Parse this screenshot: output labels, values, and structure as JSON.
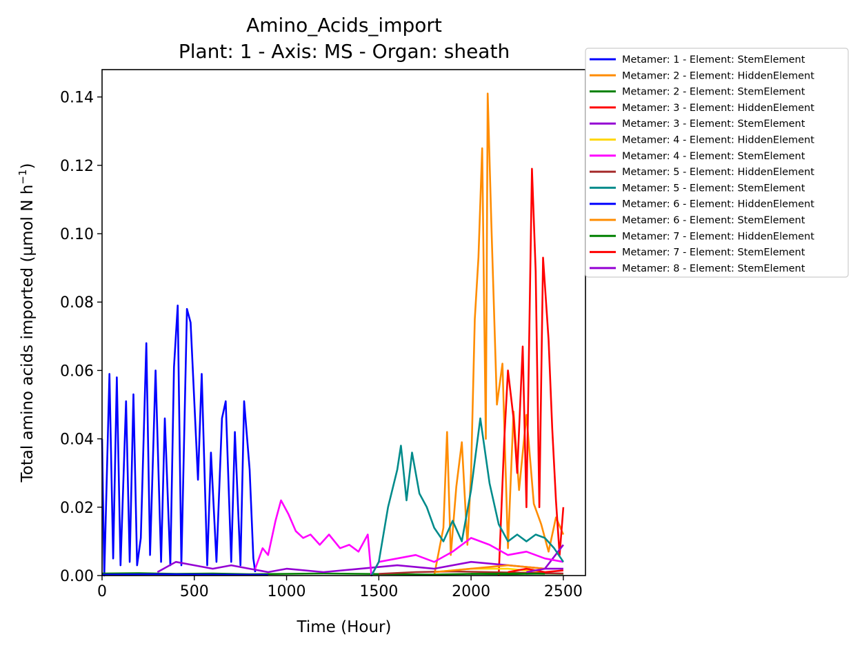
{
  "chart_data": {
    "type": "line",
    "title": "Amino_Acids_import",
    "subtitle": "Plant: 1 - Axis: MS - Organ: sheath",
    "xlabel": "Time (Hour)",
    "ylabel": "Total amino acids imported (µmol N h",
    "ylabel_sup": "−1",
    "ylabel_end": ")",
    "xlim": [
      0,
      2620
    ],
    "ylim": [
      0,
      0.148
    ],
    "xticks": [
      0,
      500,
      1000,
      1500,
      2000,
      2500
    ],
    "xtick_labels": [
      "0",
      "500",
      "1000",
      "1500",
      "2000",
      "2500"
    ],
    "yticks": [
      0,
      0.02,
      0.04,
      0.06,
      0.08,
      0.1,
      0.12,
      0.14
    ],
    "ytick_labels": [
      "0.00",
      "0.02",
      "0.04",
      "0.06",
      "0.08",
      "0.10",
      "0.12",
      "0.14"
    ],
    "legend_position": "outside-right-top",
    "grid": false,
    "series": [
      {
        "name": "Metamer: 1 - Element: StemElement",
        "color": "#0000ff",
        "x": [
          0,
          12,
          40,
          60,
          80,
          100,
          130,
          150,
          170,
          190,
          210,
          240,
          260,
          290,
          320,
          340,
          370,
          390,
          410,
          430,
          460,
          480,
          520,
          540,
          570,
          590,
          620,
          650,
          670,
          700,
          720,
          750,
          770,
          800,
          820,
          830
        ],
        "y": [
          0.04,
          0.0,
          0.059,
          0.005,
          0.058,
          0.003,
          0.051,
          0.004,
          0.053,
          0.003,
          0.011,
          0.068,
          0.006,
          0.06,
          0.004,
          0.046,
          0.003,
          0.061,
          0.079,
          0.003,
          0.078,
          0.074,
          0.028,
          0.059,
          0.003,
          0.036,
          0.004,
          0.046,
          0.051,
          0.004,
          0.042,
          0.003,
          0.051,
          0.031,
          0.005,
          0.001
        ]
      },
      {
        "name": "Metamer: 2 - Element: HiddenElement",
        "color": "#ff8c00",
        "x": [
          1800,
          1850,
          1870,
          1890,
          1920,
          1950,
          1980,
          2000,
          2020,
          2040,
          2060,
          2080,
          2090,
          2110,
          2140,
          2170,
          2200,
          2230,
          2260,
          2300,
          2340,
          2380,
          2420,
          2460,
          2500
        ],
        "y": [
          0.0,
          0.014,
          0.042,
          0.006,
          0.026,
          0.039,
          0.009,
          0.03,
          0.075,
          0.093,
          0.125,
          0.04,
          0.141,
          0.103,
          0.05,
          0.062,
          0.008,
          0.048,
          0.025,
          0.047,
          0.021,
          0.015,
          0.007,
          0.017,
          0.012
        ]
      },
      {
        "name": "Metamer: 2 - Element: StemElement",
        "color": "#008000",
        "x": [
          0,
          200,
          400,
          600,
          800,
          1000,
          1200,
          1400,
          1600,
          1800,
          2000,
          2200,
          2400,
          2500
        ],
        "y": [
          0.0006,
          0.0007,
          0.0005,
          0.0006,
          0.0004,
          0.0005,
          0.0006,
          0.0005,
          0.0004,
          0.0003,
          0.0005,
          0.0004,
          0.0006,
          0.0005
        ]
      },
      {
        "name": "Metamer: 3 - Element: HiddenElement",
        "color": "#ff0000",
        "x": [
          2150,
          2180,
          2200,
          2230,
          2250,
          2280,
          2300,
          2330,
          2350,
          2370,
          2390,
          2420,
          2440,
          2460,
          2480,
          2500
        ],
        "y": [
          0.0,
          0.04,
          0.06,
          0.046,
          0.03,
          0.067,
          0.02,
          0.119,
          0.089,
          0.02,
          0.093,
          0.069,
          0.043,
          0.022,
          0.006,
          0.02
        ]
      },
      {
        "name": "Metamer: 3 - Element: StemElement",
        "color": "#9400d3",
        "x": [
          300,
          400,
          500,
          600,
          700,
          800,
          900,
          1000,
          1200,
          1400,
          1600,
          1800,
          2000,
          2200,
          2400,
          2500
        ],
        "y": [
          0.001,
          0.004,
          0.003,
          0.002,
          0.003,
          0.002,
          0.001,
          0.002,
          0.001,
          0.002,
          0.003,
          0.002,
          0.004,
          0.003,
          0.002,
          0.009
        ]
      },
      {
        "name": "Metamer: 4 - Element: HiddenElement",
        "color": "#ffd700",
        "x": [
          1800,
          2000,
          2200,
          2400
        ],
        "y": [
          0.001,
          0.002,
          0.002,
          0.001
        ]
      },
      {
        "name": "Metamer: 4 - Element: StemElement",
        "color": "#ff00ff",
        "x": [
          830,
          870,
          900,
          940,
          970,
          1010,
          1050,
          1090,
          1130,
          1180,
          1230,
          1290,
          1340,
          1390,
          1440,
          1460,
          1500,
          1600,
          1700,
          1800,
          1900,
          2000,
          2100,
          2200,
          2300,
          2400,
          2500
        ],
        "y": [
          0.002,
          0.008,
          0.006,
          0.016,
          0.022,
          0.018,
          0.013,
          0.011,
          0.012,
          0.009,
          0.012,
          0.008,
          0.009,
          0.007,
          0.012,
          0.0,
          0.004,
          0.005,
          0.006,
          0.004,
          0.007,
          0.011,
          0.009,
          0.006,
          0.007,
          0.005,
          0.004
        ]
      },
      {
        "name": "Metamer: 5 - Element: HiddenElement",
        "color": "#a52a2a",
        "x": [
          1500,
          1700,
          1900,
          2100,
          2300,
          2500
        ],
        "y": [
          0.0005,
          0.001,
          0.0012,
          0.001,
          0.0008,
          0.0006
        ]
      },
      {
        "name": "Metamer: 5 - Element: StemElement",
        "color": "#008b8b",
        "x": [
          1460,
          1500,
          1550,
          1600,
          1620,
          1650,
          1680,
          1720,
          1760,
          1800,
          1850,
          1900,
          1950,
          2000,
          2050,
          2100,
          2150,
          2200,
          2250,
          2300,
          2350,
          2400,
          2450,
          2500
        ],
        "y": [
          0.0,
          0.004,
          0.02,
          0.031,
          0.038,
          0.022,
          0.036,
          0.024,
          0.02,
          0.014,
          0.01,
          0.016,
          0.01,
          0.025,
          0.046,
          0.027,
          0.015,
          0.01,
          0.012,
          0.01,
          0.012,
          0.011,
          0.008,
          0.004
        ]
      },
      {
        "name": "Metamer: 6 - Element: HiddenElement",
        "color": "#0000ff",
        "x": [
          0,
          300,
          600,
          900
        ],
        "y": [
          0.0003,
          0.0004,
          0.0003,
          0.0002
        ]
      },
      {
        "name": "Metamer: 6 - Element: StemElement",
        "color": "#ff8c00",
        "x": [
          1800,
          2000,
          2200,
          2400
        ],
        "y": [
          0.001,
          0.002,
          0.003,
          0.002
        ]
      },
      {
        "name": "Metamer: 7 - Element: HiddenElement",
        "color": "#008000",
        "x": [
          2000,
          2200,
          2400
        ],
        "y": [
          0.0005,
          0.0006,
          0.0005
        ]
      },
      {
        "name": "Metamer: 7 - Element: StemElement",
        "color": "#ff0000",
        "x": [
          2200,
          2300,
          2400,
          2500
        ],
        "y": [
          0.001,
          0.002,
          0.001,
          0.0015
        ]
      },
      {
        "name": "Metamer: 8 - Element: StemElement",
        "color": "#9400d3",
        "x": [
          2300,
          2400,
          2500
        ],
        "y": [
          0.001,
          0.002,
          0.002
        ]
      }
    ]
  }
}
